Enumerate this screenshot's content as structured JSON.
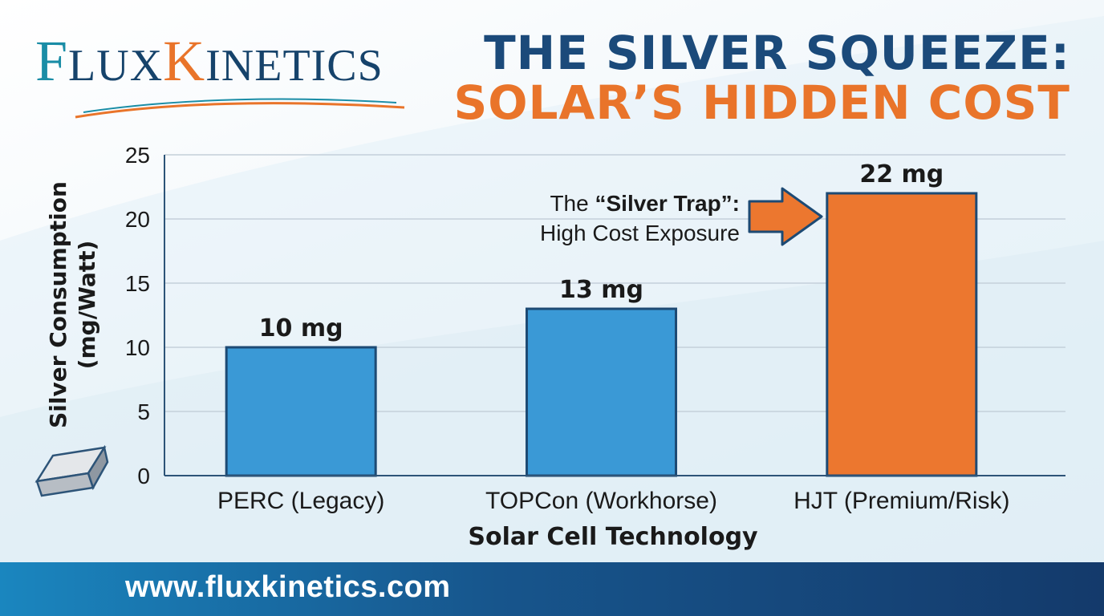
{
  "brand": {
    "logo_prefix_big": "F",
    "logo_prefix": "LUX",
    "logo_accent_big": "K",
    "logo_suffix": "INETICS"
  },
  "header": {
    "title_line1": "THE SILVER SQUEEZE:",
    "title_line2": "SOLAR’S HIDDEN COST"
  },
  "annotation": {
    "line1_pre": "The ",
    "line1_bold": "“Silver Trap”",
    "line1_post": ":",
    "line2": "High Cost Exposure"
  },
  "footer": {
    "url": "www.fluxkinetics.com"
  },
  "colors": {
    "blue_bar": "#3a99d6",
    "orange_bar": "#ec772f",
    "bar_outline": "#1d4a74",
    "title_navy": "#1b4a7a",
    "title_orange": "#e9742a"
  },
  "icons": [
    "silver-bar-icon",
    "arrow-right-icon"
  ],
  "chart_data": {
    "type": "bar",
    "categories": [
      "PERC (Legacy)",
      "TOPCon (Workhorse)",
      "HJT (Premium/Risk)"
    ],
    "values": [
      10,
      13,
      22
    ],
    "data_labels": [
      "10 mg",
      "13 mg",
      "22 mg"
    ],
    "bar_colors": [
      "#3a99d6",
      "#3a99d6",
      "#ec772f"
    ],
    "xlabel": "Solar Cell Technology",
    "ylabel_line1": "Silver Consumption",
    "ylabel_line2": "(mg/Watt)",
    "ylim": [
      0,
      25
    ],
    "yticks": [
      0,
      5,
      10,
      15,
      20,
      25
    ],
    "grid": true
  }
}
